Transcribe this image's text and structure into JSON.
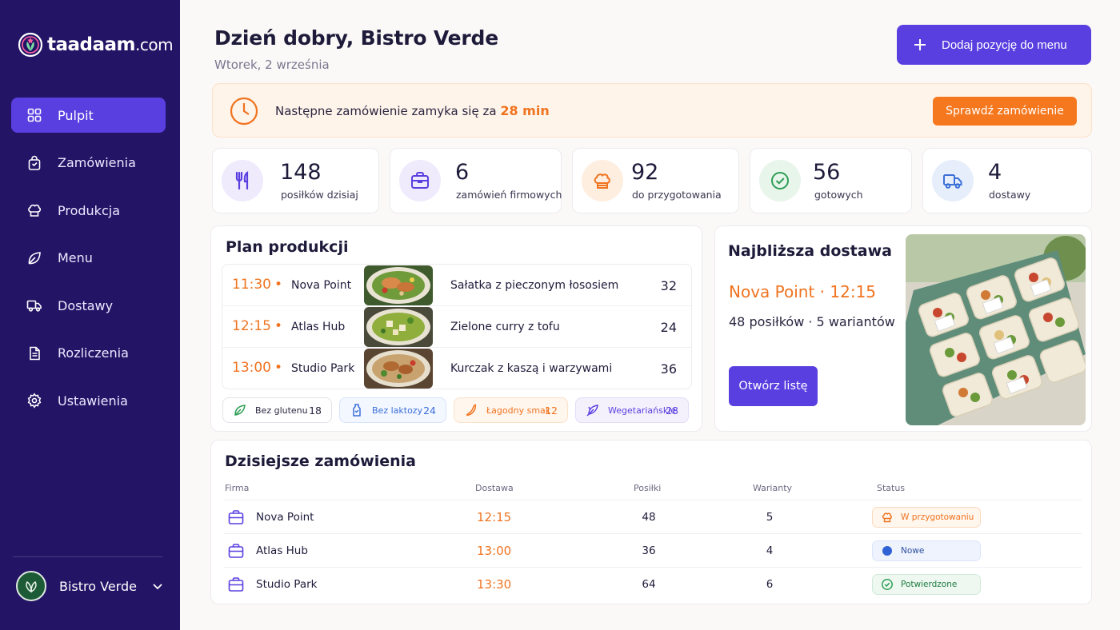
{
  "app": {
    "logo_main": "taadaam",
    "logo_domain": ".com"
  },
  "sidebar": {
    "items": [
      {
        "label": "Pulpit",
        "icon": "grid-icon",
        "active": true
      },
      {
        "label": "Zamówienia",
        "icon": "bag-icon"
      },
      {
        "label": "Produkcja",
        "icon": "chef-hat-icon"
      },
      {
        "label": "Menu",
        "icon": "leaf-icon"
      },
      {
        "label": "Dostawy",
        "icon": "truck-icon"
      },
      {
        "label": "Rozliczenia",
        "icon": "document-icon"
      },
      {
        "label": "Ustawienia",
        "icon": "gear-icon"
      }
    ],
    "account": {
      "name": "Bistro Verde"
    }
  },
  "header": {
    "greeting": "Dzień dobry, Bistro Verde",
    "date": "Wtorek, 2 września",
    "add_button": "Dodaj pozycję do menu"
  },
  "alert": {
    "text": "Następne zamówienie zamyka się za",
    "highlight": "28 min",
    "button": "Sprawdź zamówienie"
  },
  "stats": [
    {
      "value": "148",
      "label": "posiłków dzisiaj",
      "icon": "utensils-icon",
      "color": "#5a3fe0"
    },
    {
      "value": "6",
      "label": "zamówień firmowych",
      "icon": "briefcase-icon",
      "color": "#5a3fe0"
    },
    {
      "value": "92",
      "label": "do przygotowania",
      "icon": "chef-hat-icon",
      "color": "#f0731f"
    },
    {
      "value": "56",
      "label": "gotowych",
      "icon": "check-circle-icon",
      "color": "#2e9e55"
    },
    {
      "value": "4",
      "label": "dostawy",
      "icon": "truck-icon",
      "color": "#3a6fd8"
    }
  ],
  "plan": {
    "title": "Plan produkcji",
    "rows": [
      {
        "time": "11:30",
        "company": "Nova Point",
        "dish": "Sałatka z pieczonym łososiem",
        "qty": "32"
      },
      {
        "time": "12:15",
        "company": "Atlas Hub",
        "dish": "Zielone curry z tofu",
        "qty": "24"
      },
      {
        "time": "13:00",
        "company": "Studio Park",
        "dish": "Kurczak z kaszą i warzywami",
        "qty": "36"
      }
    ],
    "tags": [
      {
        "label": "Bez glutenu",
        "count": "18",
        "icon": "wheat-off-icon"
      },
      {
        "label": "Bez laktozy",
        "count": "24",
        "icon": "bottle-icon"
      },
      {
        "label": "Łagodny smak",
        "count": "12",
        "icon": "chili-icon"
      },
      {
        "label": "Wegetariańskie",
        "count": "28",
        "icon": "vegan-leaf-icon"
      }
    ]
  },
  "delivery": {
    "title": "Najbliższa dostawa",
    "where": "Nova Point",
    "time": "12:15",
    "meta": "48 posiłków · 5 wariantów",
    "button": "Otwórz listę"
  },
  "orders": {
    "title": "Dzisiejsze zamówienia",
    "columns": [
      "Firma",
      "Dostawa",
      "Posiłki",
      "Warianty",
      "Status"
    ],
    "rows": [
      {
        "company": "Nova Point",
        "time": "12:15",
        "meals": "48",
        "variants": "5",
        "status": "W przygotowaniu",
        "status_color": "#f0731f"
      },
      {
        "company": "Atlas Hub",
        "time": "13:00",
        "meals": "36",
        "variants": "4",
        "status": "Nowe",
        "status_color": "#3a6fd8"
      },
      {
        "company": "Studio Park",
        "time": "13:30",
        "meals": "64",
        "variants": "6",
        "status": "Potwierdzone",
        "status_color": "#2e9e55"
      }
    ]
  }
}
